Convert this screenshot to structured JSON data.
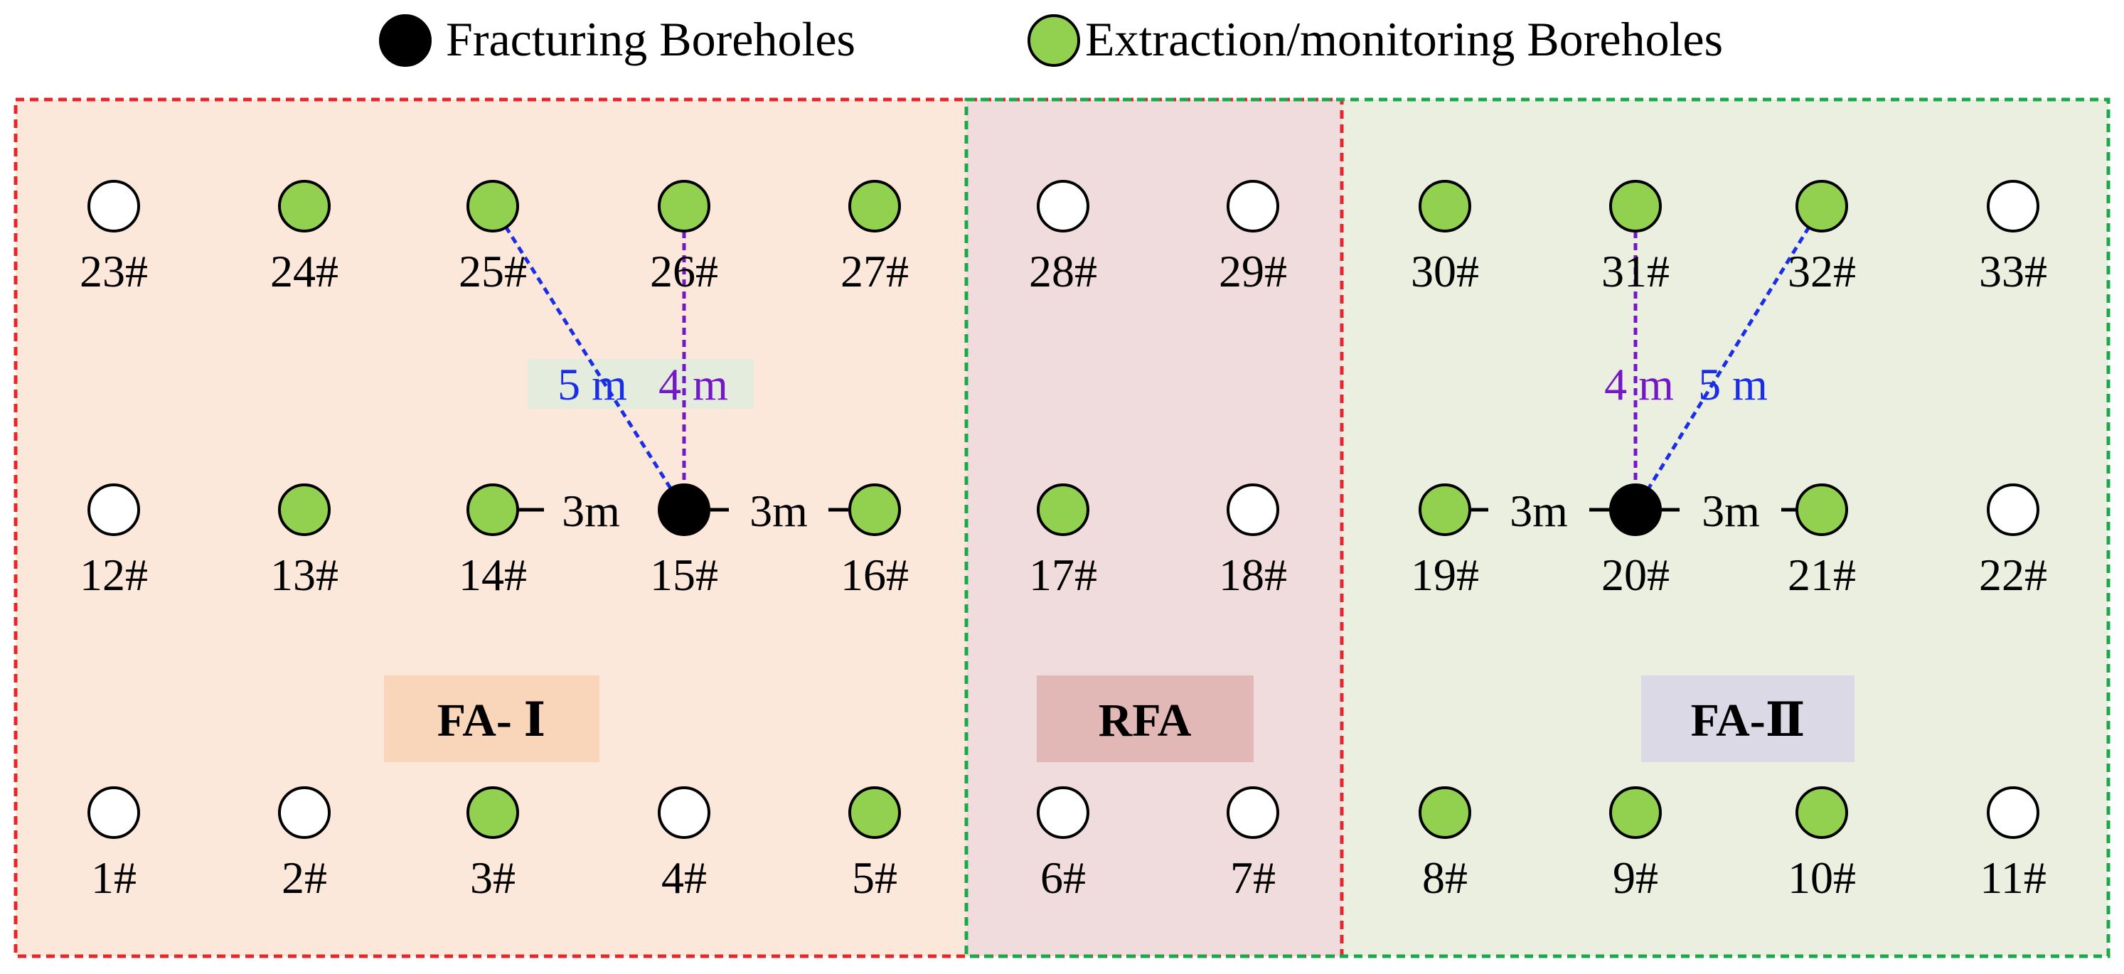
{
  "legend": {
    "fracturing_label": "Fracturing Boreholes",
    "extraction_label": "Extraction/monitoring Boreholes"
  },
  "colors": {
    "fracturing": "#000000",
    "extraction": "#92d050",
    "unused": "#ffffff",
    "fa1_bg": "#fbe8da",
    "rfa_bg": "#f0dcdc",
    "fa2_bg": "#ebefdf",
    "fa1_border": "#e5262b",
    "fa2_border": "#1aa84a",
    "fa1_badge": "#f9d6b9",
    "rfa_badge": "#e2b8b6",
    "fa2_badge": "#dcd9e6",
    "line_5m": "#1a2ee6",
    "line_4m": "#7417c4",
    "label_bg": "#e3ecdd"
  },
  "zones": {
    "fa1": "FA- Ⅰ",
    "rfa": "RFA",
    "fa2": "FA-Ⅱ"
  },
  "boreholes": [
    {
      "label": "23#",
      "type": "unused"
    },
    {
      "label": "24#",
      "type": "extraction"
    },
    {
      "label": "25#",
      "type": "extraction"
    },
    {
      "label": "26#",
      "type": "extraction"
    },
    {
      "label": "27#",
      "type": "extraction"
    },
    {
      "label": "28#",
      "type": "unused"
    },
    {
      "label": "29#",
      "type": "unused"
    },
    {
      "label": "30#",
      "type": "extraction"
    },
    {
      "label": "31#",
      "type": "extraction"
    },
    {
      "label": "32#",
      "type": "extraction"
    },
    {
      "label": "33#",
      "type": "unused"
    },
    {
      "label": "12#",
      "type": "unused"
    },
    {
      "label": "13#",
      "type": "extraction"
    },
    {
      "label": "14#",
      "type": "extraction"
    },
    {
      "label": "15#",
      "type": "fracturing"
    },
    {
      "label": "16#",
      "type": "extraction"
    },
    {
      "label": "17#",
      "type": "extraction"
    },
    {
      "label": "18#",
      "type": "unused"
    },
    {
      "label": "19#",
      "type": "extraction"
    },
    {
      "label": "20#",
      "type": "fracturing"
    },
    {
      "label": "21#",
      "type": "extraction"
    },
    {
      "label": "22#",
      "type": "unused"
    },
    {
      "label": "1#",
      "type": "unused"
    },
    {
      "label": "2#",
      "type": "unused"
    },
    {
      "label": "3#",
      "type": "extraction"
    },
    {
      "label": "4#",
      "type": "unused"
    },
    {
      "label": "5#",
      "type": "extraction"
    },
    {
      "label": "6#",
      "type": "unused"
    },
    {
      "label": "7#",
      "type": "unused"
    },
    {
      "label": "8#",
      "type": "extraction"
    },
    {
      "label": "9#",
      "type": "extraction"
    },
    {
      "label": "10#",
      "type": "extraction"
    },
    {
      "label": "11#",
      "type": "unused"
    }
  ],
  "distances": {
    "left_3m": "3m",
    "right_3m": "3m",
    "diag_5m": "5 m",
    "vert_4m": "4 m"
  }
}
